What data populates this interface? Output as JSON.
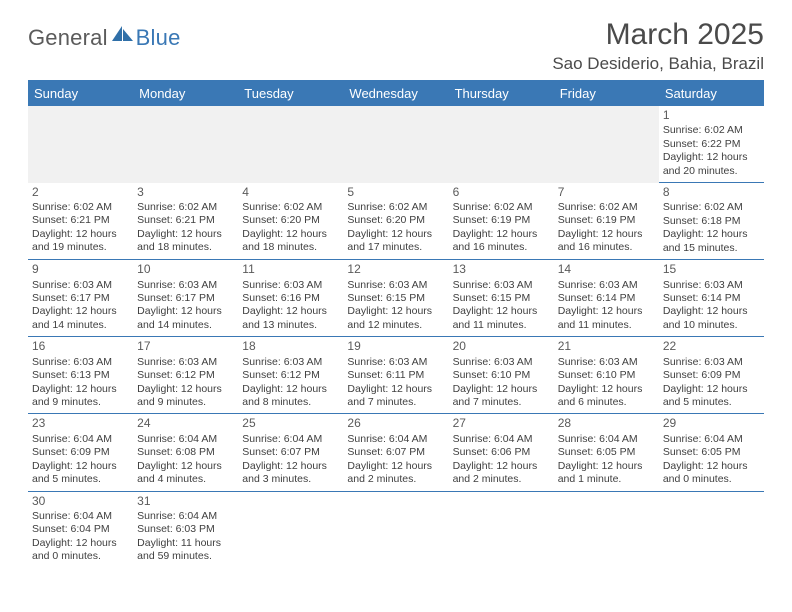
{
  "logo": {
    "part1": "General",
    "part2": "Blue"
  },
  "title": "March 2025",
  "location": "Sao Desiderio, Bahia, Brazil",
  "colors": {
    "accent": "#3a78b5",
    "header_bg": "#3a78b5",
    "header_fg": "#ffffff",
    "rule": "#3a78b5",
    "blank_row_bg": "#f1f1f1",
    "text": "#3f3f3f",
    "logo_gray": "#5b5b5b"
  },
  "weekdays": [
    "Sunday",
    "Monday",
    "Tuesday",
    "Wednesday",
    "Thursday",
    "Friday",
    "Saturday"
  ],
  "weeks": [
    [
      null,
      null,
      null,
      null,
      null,
      null,
      {
        "n": "1",
        "sunrise": "Sunrise: 6:02 AM",
        "sunset": "Sunset: 6:22 PM",
        "day1": "Daylight: 12 hours",
        "day2": "and 20 minutes."
      }
    ],
    [
      {
        "n": "2",
        "sunrise": "Sunrise: 6:02 AM",
        "sunset": "Sunset: 6:21 PM",
        "day1": "Daylight: 12 hours",
        "day2": "and 19 minutes."
      },
      {
        "n": "3",
        "sunrise": "Sunrise: 6:02 AM",
        "sunset": "Sunset: 6:21 PM",
        "day1": "Daylight: 12 hours",
        "day2": "and 18 minutes."
      },
      {
        "n": "4",
        "sunrise": "Sunrise: 6:02 AM",
        "sunset": "Sunset: 6:20 PM",
        "day1": "Daylight: 12 hours",
        "day2": "and 18 minutes."
      },
      {
        "n": "5",
        "sunrise": "Sunrise: 6:02 AM",
        "sunset": "Sunset: 6:20 PM",
        "day1": "Daylight: 12 hours",
        "day2": "and 17 minutes."
      },
      {
        "n": "6",
        "sunrise": "Sunrise: 6:02 AM",
        "sunset": "Sunset: 6:19 PM",
        "day1": "Daylight: 12 hours",
        "day2": "and 16 minutes."
      },
      {
        "n": "7",
        "sunrise": "Sunrise: 6:02 AM",
        "sunset": "Sunset: 6:19 PM",
        "day1": "Daylight: 12 hours",
        "day2": "and 16 minutes."
      },
      {
        "n": "8",
        "sunrise": "Sunrise: 6:02 AM",
        "sunset": "Sunset: 6:18 PM",
        "day1": "Daylight: 12 hours",
        "day2": "and 15 minutes."
      }
    ],
    [
      {
        "n": "9",
        "sunrise": "Sunrise: 6:03 AM",
        "sunset": "Sunset: 6:17 PM",
        "day1": "Daylight: 12 hours",
        "day2": "and 14 minutes."
      },
      {
        "n": "10",
        "sunrise": "Sunrise: 6:03 AM",
        "sunset": "Sunset: 6:17 PM",
        "day1": "Daylight: 12 hours",
        "day2": "and 14 minutes."
      },
      {
        "n": "11",
        "sunrise": "Sunrise: 6:03 AM",
        "sunset": "Sunset: 6:16 PM",
        "day1": "Daylight: 12 hours",
        "day2": "and 13 minutes."
      },
      {
        "n": "12",
        "sunrise": "Sunrise: 6:03 AM",
        "sunset": "Sunset: 6:15 PM",
        "day1": "Daylight: 12 hours",
        "day2": "and 12 minutes."
      },
      {
        "n": "13",
        "sunrise": "Sunrise: 6:03 AM",
        "sunset": "Sunset: 6:15 PM",
        "day1": "Daylight: 12 hours",
        "day2": "and 11 minutes."
      },
      {
        "n": "14",
        "sunrise": "Sunrise: 6:03 AM",
        "sunset": "Sunset: 6:14 PM",
        "day1": "Daylight: 12 hours",
        "day2": "and 11 minutes."
      },
      {
        "n": "15",
        "sunrise": "Sunrise: 6:03 AM",
        "sunset": "Sunset: 6:14 PM",
        "day1": "Daylight: 12 hours",
        "day2": "and 10 minutes."
      }
    ],
    [
      {
        "n": "16",
        "sunrise": "Sunrise: 6:03 AM",
        "sunset": "Sunset: 6:13 PM",
        "day1": "Daylight: 12 hours",
        "day2": "and 9 minutes."
      },
      {
        "n": "17",
        "sunrise": "Sunrise: 6:03 AM",
        "sunset": "Sunset: 6:12 PM",
        "day1": "Daylight: 12 hours",
        "day2": "and 9 minutes."
      },
      {
        "n": "18",
        "sunrise": "Sunrise: 6:03 AM",
        "sunset": "Sunset: 6:12 PM",
        "day1": "Daylight: 12 hours",
        "day2": "and 8 minutes."
      },
      {
        "n": "19",
        "sunrise": "Sunrise: 6:03 AM",
        "sunset": "Sunset: 6:11 PM",
        "day1": "Daylight: 12 hours",
        "day2": "and 7 minutes."
      },
      {
        "n": "20",
        "sunrise": "Sunrise: 6:03 AM",
        "sunset": "Sunset: 6:10 PM",
        "day1": "Daylight: 12 hours",
        "day2": "and 7 minutes."
      },
      {
        "n": "21",
        "sunrise": "Sunrise: 6:03 AM",
        "sunset": "Sunset: 6:10 PM",
        "day1": "Daylight: 12 hours",
        "day2": "and 6 minutes."
      },
      {
        "n": "22",
        "sunrise": "Sunrise: 6:03 AM",
        "sunset": "Sunset: 6:09 PM",
        "day1": "Daylight: 12 hours",
        "day2": "and 5 minutes."
      }
    ],
    [
      {
        "n": "23",
        "sunrise": "Sunrise: 6:04 AM",
        "sunset": "Sunset: 6:09 PM",
        "day1": "Daylight: 12 hours",
        "day2": "and 5 minutes."
      },
      {
        "n": "24",
        "sunrise": "Sunrise: 6:04 AM",
        "sunset": "Sunset: 6:08 PM",
        "day1": "Daylight: 12 hours",
        "day2": "and 4 minutes."
      },
      {
        "n": "25",
        "sunrise": "Sunrise: 6:04 AM",
        "sunset": "Sunset: 6:07 PM",
        "day1": "Daylight: 12 hours",
        "day2": "and 3 minutes."
      },
      {
        "n": "26",
        "sunrise": "Sunrise: 6:04 AM",
        "sunset": "Sunset: 6:07 PM",
        "day1": "Daylight: 12 hours",
        "day2": "and 2 minutes."
      },
      {
        "n": "27",
        "sunrise": "Sunrise: 6:04 AM",
        "sunset": "Sunset: 6:06 PM",
        "day1": "Daylight: 12 hours",
        "day2": "and 2 minutes."
      },
      {
        "n": "28",
        "sunrise": "Sunrise: 6:04 AM",
        "sunset": "Sunset: 6:05 PM",
        "day1": "Daylight: 12 hours",
        "day2": "and 1 minute."
      },
      {
        "n": "29",
        "sunrise": "Sunrise: 6:04 AM",
        "sunset": "Sunset: 6:05 PM",
        "day1": "Daylight: 12 hours",
        "day2": "and 0 minutes."
      }
    ],
    [
      {
        "n": "30",
        "sunrise": "Sunrise: 6:04 AM",
        "sunset": "Sunset: 6:04 PM",
        "day1": "Daylight: 12 hours",
        "day2": "and 0 minutes."
      },
      {
        "n": "31",
        "sunrise": "Sunrise: 6:04 AM",
        "sunset": "Sunset: 6:03 PM",
        "day1": "Daylight: 11 hours",
        "day2": "and 59 minutes."
      },
      null,
      null,
      null,
      null,
      null
    ]
  ]
}
